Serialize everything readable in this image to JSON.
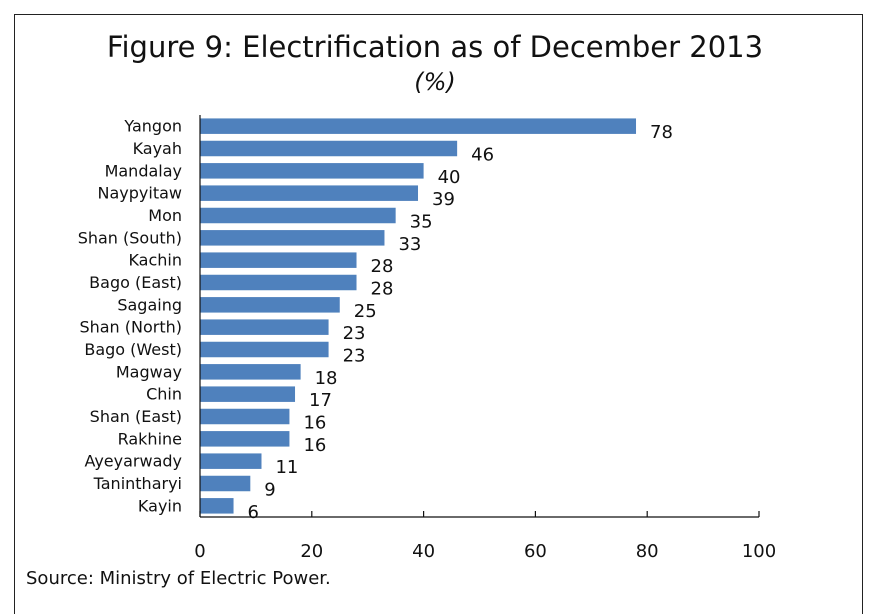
{
  "chart_data": {
    "type": "bar",
    "orientation": "horizontal",
    "title": "Figure 9: Electrification as of December 2013",
    "subtitle": "(%)",
    "categories": [
      "Yangon",
      "Kayah",
      "Mandalay",
      "Naypyitaw",
      "Mon",
      "Shan (South)",
      "Kachin",
      "Bago (East)",
      "Sagaing",
      "Shan (North)",
      "Bago (West)",
      "Magway",
      "Chin",
      "Shan (East)",
      "Rakhine",
      "Ayeyarwady",
      "Tanintharyi",
      "Kayin"
    ],
    "values": [
      78,
      46,
      40,
      39,
      35,
      33,
      28,
      28,
      25,
      23,
      23,
      18,
      17,
      16,
      16,
      11,
      9,
      6
    ],
    "xlim": [
      0,
      100
    ],
    "xticks": [
      0,
      20,
      40,
      60,
      80,
      100
    ],
    "bar_color": "#4f81bd",
    "grid": false,
    "legend": "none"
  },
  "source": "Source: Ministry of Electric Power."
}
